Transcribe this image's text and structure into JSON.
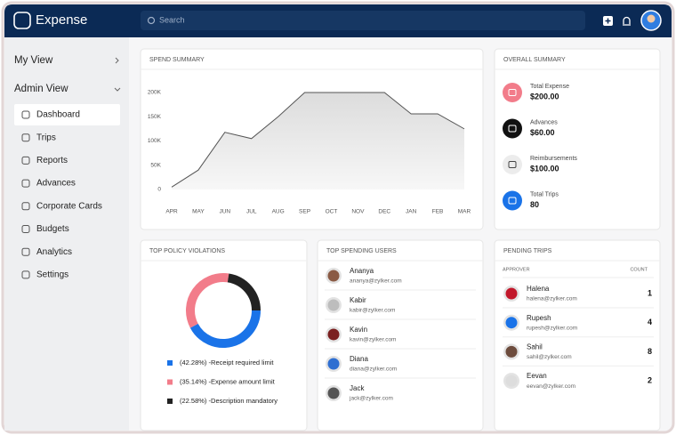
{
  "header": {
    "app_name": "Expense",
    "search_placeholder": "Search"
  },
  "sidebar": {
    "my_view": "My View",
    "admin_view": "Admin View",
    "items": [
      "Dashboard",
      "Trips",
      "Reports",
      "Advances",
      "Corporate Cards",
      "Budgets",
      "Analytics",
      "Settings"
    ]
  },
  "spend_summary": {
    "type": "area",
    "title": "SPEND SUMMARY",
    "categories": [
      "APR",
      "MAY",
      "JUN",
      "JUL",
      "AUG",
      "SEP",
      "OCT",
      "NOV",
      "DEC",
      "JAN",
      "FEB",
      "MAR"
    ],
    "values": [
      5000,
      40000,
      118000,
      105000,
      150000,
      200000,
      200000,
      200000,
      200000,
      156000,
      156000,
      125000
    ],
    "color": "#555555",
    "grid": false,
    "ylim": [
      0,
      200000
    ],
    "yticks": [
      {
        "value": 200000,
        "label": "200K"
      },
      {
        "value": 150000,
        "label": "150K"
      },
      {
        "value": 100000,
        "label": "100K"
      },
      {
        "value": 50000,
        "label": "50K"
      },
      0
    ]
  },
  "overall_summary": {
    "title": "OVERALL SUMMARY",
    "items": [
      {
        "label": "Total Expense",
        "value": "$200.00"
      },
      {
        "label": "Advances",
        "value": "$60.00"
      },
      {
        "label": "Reimbursements",
        "value": "$100.00"
      },
      {
        "label": "Total Trips",
        "value": "80"
      }
    ]
  },
  "policy_violations": {
    "type": "donut",
    "title": "TOP POLICY VIOLATIONS",
    "categories": [
      "-Receipt required limit",
      "-Expense amount limit",
      "-Description mandatory"
    ],
    "values": [
      42.28,
      35.14,
      22.58
    ],
    "value_labels": [
      "(42.28%)",
      "(35.14%)",
      "(22.58%)"
    ],
    "colors": [
      "#1a73e8",
      "#f27c8a",
      "#222222"
    ]
  },
  "top_spending_users": {
    "title": "TOP SPENDING USERS",
    "users": [
      {
        "name": "Ananya",
        "email": "ananya@zylker.com"
      },
      {
        "name": "Kabir",
        "email": "kabir@zylker.com"
      },
      {
        "name": "Kavin",
        "email": "kavin@zylker.com"
      },
      {
        "name": "Diana",
        "email": "diana@zylker.com"
      },
      {
        "name": "Jack",
        "email": "jack@zylker.com"
      }
    ]
  },
  "pending_trips": {
    "title": "PENDING TRIPS",
    "columns": [
      "APPROVER",
      "COUNT"
    ],
    "rows": [
      {
        "name": "Halena",
        "email": "halena@zylker.com",
        "count": 1
      },
      {
        "name": "Rupesh",
        "email": "rupesh@zylker.com",
        "count": 4
      },
      {
        "name": "Sahil",
        "email": "sahil@zylker.com",
        "count": 8
      },
      {
        "name": "Eevan",
        "email": "eevan@zylker.com",
        "count": 2
      }
    ]
  }
}
